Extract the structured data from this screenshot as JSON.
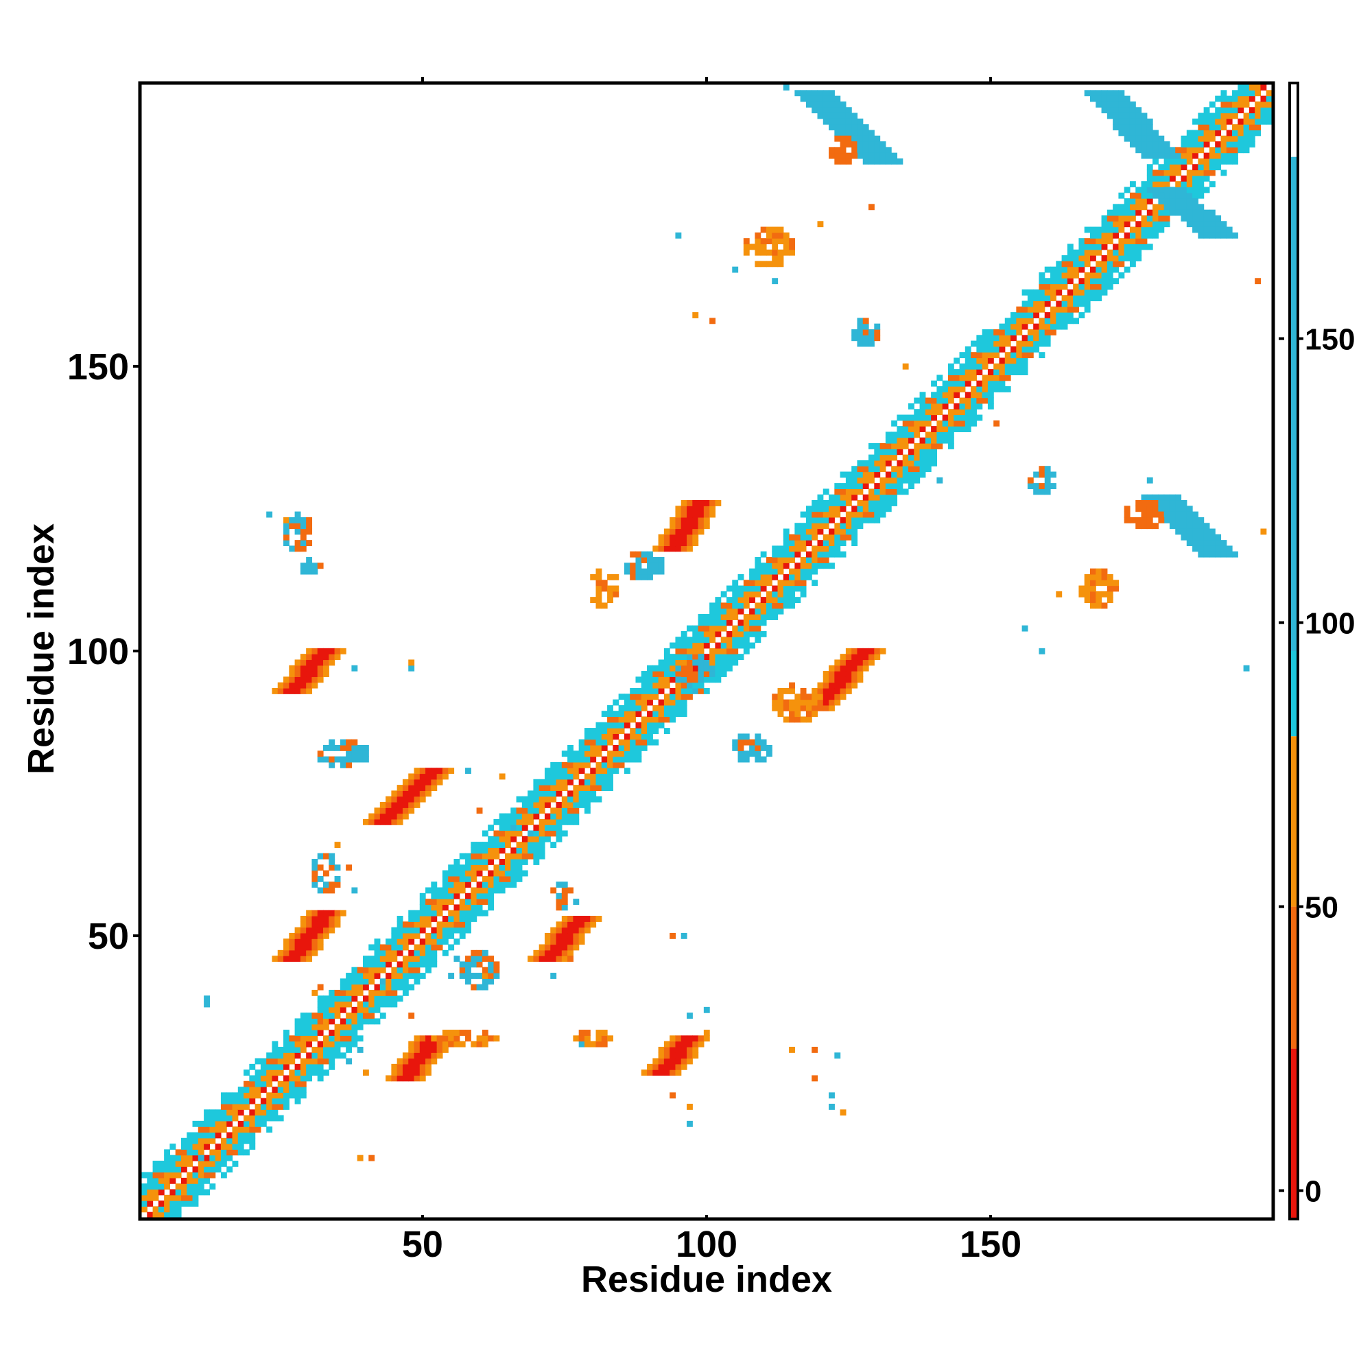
{
  "chart_data": {
    "type": "heatmap",
    "title": "",
    "xlabel": "Residue index",
    "ylabel": "Residue index",
    "xlim": [
      1,
      199
    ],
    "ylim": [
      1,
      199
    ],
    "x_ticks": [
      50,
      100,
      150
    ],
    "y_ticks": [
      50,
      100,
      150
    ],
    "grid": false,
    "colorbar": {
      "ticks": [
        0,
        50,
        100,
        150
      ],
      "range": [
        -5,
        195
      ],
      "bands": [
        {
          "from": -5,
          "to": 25,
          "color": "#e8160c"
        },
        {
          "from": 25,
          "to": 50,
          "color": "#f26b10"
        },
        {
          "from": 50,
          "to": 80,
          "color": "#f5920c"
        },
        {
          "from": 80,
          "to": 95,
          "color": "#1ec8dc"
        },
        {
          "from": 95,
          "to": 182,
          "color": "#2fb6d6"
        },
        {
          "from": 182,
          "to": 195,
          "color": "#ffffff"
        }
      ]
    },
    "palette": {
      "red": "#e8160c",
      "orange_red": "#f2540e",
      "orange": "#f5920c",
      "cyan": "#19d8e6",
      "sky": "#2fb6d6",
      "steel_blue": "#4a8ac4"
    },
    "diagonal": {
      "from": 1,
      "to": 199,
      "half_width": 7
    },
    "segments": [
      {
        "from": [
          47,
          25
        ],
        "to": [
          52,
          32
        ],
        "width": 3,
        "value": 5
      },
      {
        "from": [
          27,
          46
        ],
        "to": [
          33,
          54
        ],
        "width": 3,
        "value": 5
      },
      {
        "from": [
          72,
          46
        ],
        "to": [
          78,
          53
        ],
        "width": 3,
        "value": 5
      },
      {
        "from": [
          43,
          70
        ],
        "to": [
          52,
          79
        ],
        "width": 3,
        "value": 5
      },
      {
        "from": [
          27,
          93
        ],
        "to": [
          33,
          100
        ],
        "width": 3,
        "value": 5
      },
      {
        "from": [
          119,
          90
        ],
        "to": [
          128,
          100
        ],
        "width": 3,
        "value": 5
      },
      {
        "from": [
          94,
          118
        ],
        "to": [
          99,
          126
        ],
        "width": 3,
        "value": 5
      },
      {
        "from": [
          92,
          26
        ],
        "to": [
          97,
          32
        ],
        "width": 3,
        "value": 5
      },
      {
        "from": [
          119,
          198
        ],
        "to": [
          131,
          186
        ],
        "width": 3,
        "value": 170
      },
      {
        "from": [
          170,
          198
        ],
        "to": [
          180,
          187
        ],
        "width": 3,
        "value": 170
      },
      {
        "from": [
          181,
          181
        ],
        "to": [
          190,
          173
        ],
        "width": 3,
        "value": 170
      },
      {
        "from": [
          180,
          127
        ],
        "to": [
          190,
          117
        ],
        "width": 3,
        "value": 170
      }
    ],
    "blobs": [
      {
        "x": 36,
        "y": 82,
        "rx": 4,
        "ry": 2,
        "value": 95
      },
      {
        "x": 33,
        "y": 61,
        "rx": 2,
        "ry": 3,
        "value": 95
      },
      {
        "x": 60,
        "y": 44,
        "rx": 3,
        "ry": 3,
        "value": 95
      },
      {
        "x": 75,
        "y": 57,
        "rx": 2,
        "ry": 2,
        "value": 95
      },
      {
        "x": 57,
        "y": 32,
        "rx": 6,
        "ry": 1,
        "value": 60
      },
      {
        "x": 80,
        "y": 32,
        "rx": 3,
        "ry": 1,
        "value": 60
      },
      {
        "x": 82,
        "y": 111,
        "rx": 2,
        "ry": 3,
        "value": 60
      },
      {
        "x": 89,
        "y": 115,
        "rx": 3,
        "ry": 2,
        "value": 95
      },
      {
        "x": 116,
        "y": 91,
        "rx": 4,
        "ry": 3,
        "value": 60
      },
      {
        "x": 108,
        "y": 83,
        "rx": 3,
        "ry": 2,
        "value": 95
      },
      {
        "x": 111,
        "y": 171,
        "rx": 4,
        "ry": 3,
        "value": 60
      },
      {
        "x": 124,
        "y": 188,
        "rx": 2,
        "ry": 2,
        "value": 30
      },
      {
        "x": 128,
        "y": 156,
        "rx": 2,
        "ry": 2,
        "value": 95
      },
      {
        "x": 159,
        "y": 130,
        "rx": 2,
        "ry": 2,
        "value": 95
      },
      {
        "x": 169,
        "y": 111,
        "rx": 3,
        "ry": 3,
        "value": 60
      },
      {
        "x": 177,
        "y": 124,
        "rx": 3,
        "ry": 2,
        "value": 30
      },
      {
        "x": 98,
        "y": 96,
        "rx": 3,
        "ry": 3,
        "value": 95
      },
      {
        "x": 28,
        "y": 121,
        "rx": 2,
        "ry": 3,
        "value": 95
      },
      {
        "x": 30,
        "y": 115,
        "rx": 2,
        "ry": 1,
        "value": 95
      }
    ],
    "scatter_points": [
      [
        39,
        30
      ],
      [
        40,
        26
      ],
      [
        48,
        36
      ],
      [
        55,
        43
      ],
      [
        56,
        46
      ],
      [
        61,
        43
      ],
      [
        76,
        46
      ],
      [
        73,
        43
      ],
      [
        78,
        31
      ],
      [
        97,
        20
      ],
      [
        94,
        22
      ],
      [
        97,
        17
      ],
      [
        97,
        36
      ],
      [
        100,
        33
      ],
      [
        94,
        50
      ],
      [
        96,
        50
      ],
      [
        100,
        37
      ],
      [
        115,
        30
      ],
      [
        119,
        30
      ],
      [
        123,
        29
      ],
      [
        122,
        20
      ],
      [
        124,
        19
      ],
      [
        119,
        25
      ],
      [
        122,
        22
      ],
      [
        11,
        11
      ],
      [
        39,
        11
      ],
      [
        41,
        11
      ],
      [
        12,
        38
      ],
      [
        12,
        39
      ],
      [
        31,
        40
      ],
      [
        32,
        41
      ],
      [
        43,
        42
      ],
      [
        23,
        124
      ],
      [
        26,
        123
      ],
      [
        30,
        119
      ],
      [
        38,
        97
      ],
      [
        48,
        97
      ],
      [
        48,
        98
      ],
      [
        32,
        35
      ],
      [
        37,
        28
      ],
      [
        58,
        79
      ],
      [
        64,
        78
      ],
      [
        60,
        72
      ],
      [
        66,
        69
      ],
      [
        69,
        68
      ],
      [
        35,
        66
      ],
      [
        37,
        62
      ],
      [
        38,
        58
      ],
      [
        95,
        173
      ],
      [
        98,
        159
      ],
      [
        101,
        158
      ],
      [
        105,
        167
      ],
      [
        112,
        165
      ],
      [
        120,
        175
      ],
      [
        129,
        178
      ],
      [
        156,
        104
      ],
      [
        159,
        100
      ],
      [
        162,
        110
      ],
      [
        174,
        125
      ],
      [
        178,
        130
      ],
      [
        195,
        97
      ],
      [
        198,
        121
      ],
      [
        197,
        165
      ],
      [
        171,
        198
      ],
      [
        114,
        199
      ],
      [
        135,
        150
      ],
      [
        151,
        140
      ],
      [
        141,
        130
      ]
    ]
  }
}
